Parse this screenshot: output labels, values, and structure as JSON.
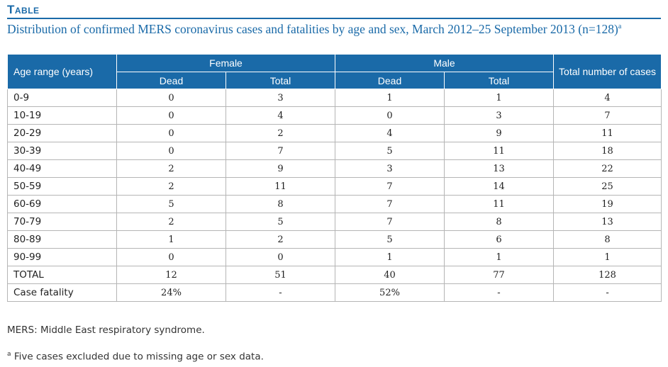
{
  "heading": {
    "label": "Table"
  },
  "title": {
    "text": "Distribution of confirmed MERS coronavirus cases and fatalities by age and sex, March 2012–25 September 2013 (n=128)",
    "sup": "a"
  },
  "table": {
    "header": {
      "age": "Age range (years)",
      "female": "Female",
      "male": "Male",
      "total": "Total number of cases",
      "dead": "Dead",
      "total_col": "Total"
    },
    "rows": [
      [
        "0-9",
        "0",
        "3",
        "1",
        "1",
        "4"
      ],
      [
        "10-19",
        "0",
        "4",
        "0",
        "3",
        "7"
      ],
      [
        "20-29",
        "0",
        "2",
        "4",
        "9",
        "11"
      ],
      [
        "30-39",
        "0",
        "7",
        "5",
        "11",
        "18"
      ],
      [
        "40-49",
        "2",
        "9",
        "3",
        "13",
        "22"
      ],
      [
        "50-59",
        "2",
        "11",
        "7",
        "14",
        "25"
      ],
      [
        "60-69",
        "5",
        "8",
        "7",
        "11",
        "19"
      ],
      [
        "70-79",
        "2",
        "5",
        "7",
        "8",
        "13"
      ],
      [
        "80-89",
        "1",
        "2",
        "5",
        "6",
        "8"
      ],
      [
        "90-99",
        "0",
        "0",
        "1",
        "1",
        "1"
      ],
      [
        "TOTAL",
        "12",
        "51",
        "40",
        "77",
        "128"
      ],
      [
        "Case fatality",
        "24%",
        "-",
        "52%",
        "-",
        "-"
      ]
    ]
  },
  "footnotes": {
    "abbrev": "MERS: Middle East respiratory syndrome.",
    "a_mark": "a",
    "a_text": "Five cases excluded due to missing age or sex data."
  }
}
